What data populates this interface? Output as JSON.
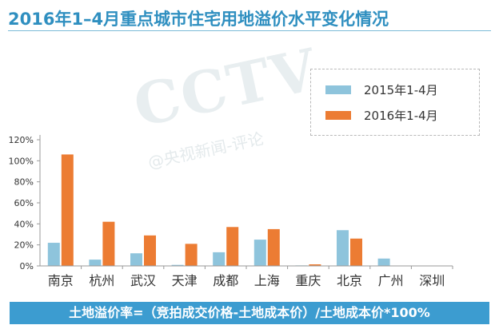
{
  "header": {
    "title": "2016年1–4月重点城市住宅用地溢价水平变化情况"
  },
  "watermark": {
    "main": "CCTV",
    "sub": "@央视新闻-评论"
  },
  "footer": {
    "formula": "土地溢价率=（竞拍成交价格-土地成本价）/土地成本价*100%"
  },
  "chart_data": {
    "type": "bar",
    "title": "2016年1–4月重点城市住宅用地溢价水平变化情况",
    "xlabel": "",
    "ylabel": "",
    "categories": [
      "南京",
      "杭州",
      "武汉",
      "天津",
      "成都",
      "上海",
      "重庆",
      "北京",
      "广州",
      "深圳"
    ],
    "series": [
      {
        "name": "2015年1-4月",
        "color": "#8ec4dc",
        "values": [
          22,
          6,
          12,
          1,
          13,
          25,
          0.5,
          34,
          7,
          0
        ]
      },
      {
        "name": "2016年1-4月",
        "color": "#ec7c33",
        "values": [
          106,
          42,
          29,
          21,
          37,
          35,
          1.5,
          26,
          0,
          0
        ]
      }
    ],
    "ylim": [
      0,
      120
    ],
    "yticks": [
      "0%",
      "20%",
      "40%",
      "60%",
      "80%",
      "100%",
      "120%"
    ],
    "grid": false,
    "legend": "top-right"
  }
}
